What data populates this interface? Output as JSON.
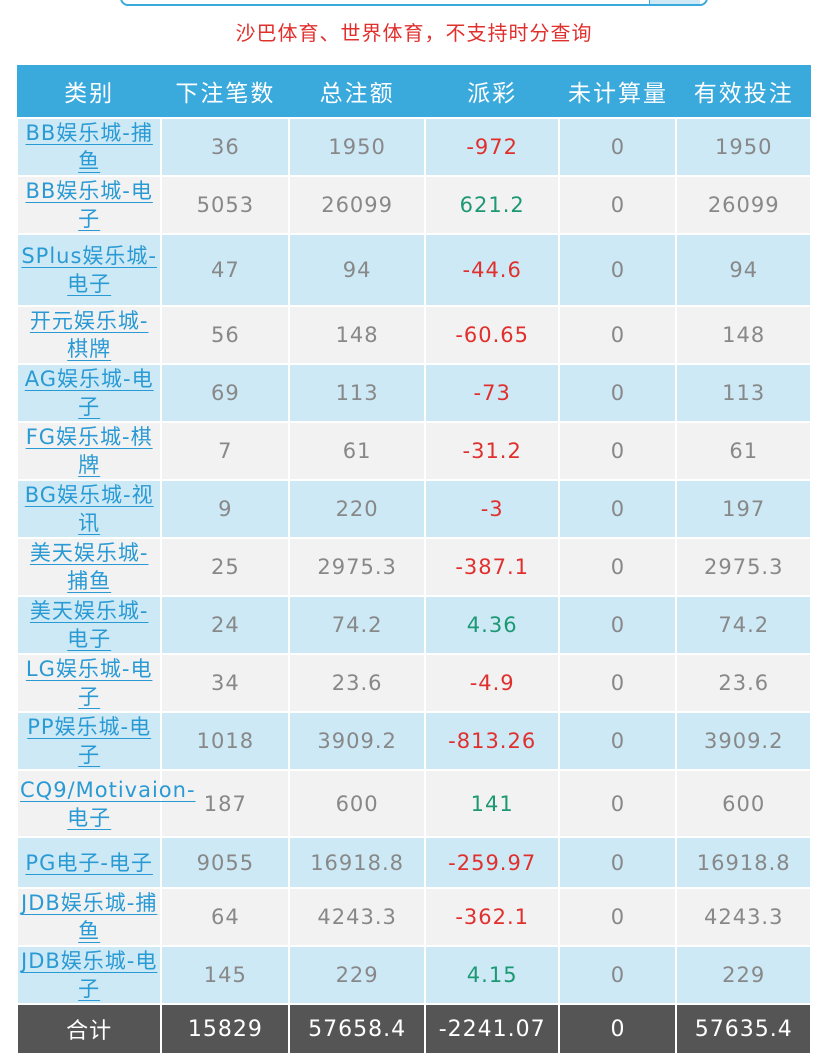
{
  "notice": "沙巴体育、世界体育，不支持时分查询",
  "colors": {
    "header_bg": "#3aa9dc",
    "row_odd": "#cde9f6",
    "row_even": "#f2f2f2",
    "negative": "#e0302e",
    "positive": "#1c9873",
    "footer_bg": "#555555",
    "link": "#2a9ad4"
  },
  "table": {
    "headers": [
      "类别",
      "下注笔数",
      "总注额",
      "派彩",
      "未计算量",
      "有效投注"
    ],
    "rows": [
      {
        "name": "BB娱乐城-捕鱼",
        "bets": "36",
        "total": "1950",
        "payout": "-972",
        "sign": "neg",
        "pending": "0",
        "valid": "1950",
        "h": 50
      },
      {
        "name": "BB娱乐城-电子",
        "bets": "5053",
        "total": "26099",
        "payout": "621.2",
        "sign": "pos",
        "pending": "0",
        "valid": "26099",
        "h": 51
      },
      {
        "name": "SPlus娱乐城-电子",
        "bets": "47",
        "total": "94",
        "payout": "-44.6",
        "sign": "neg",
        "pending": "0",
        "valid": "94",
        "h": 72
      },
      {
        "name": "开元娱乐城-棋牌",
        "bets": "56",
        "total": "148",
        "payout": "-60.65",
        "sign": "neg",
        "pending": "0",
        "valid": "148",
        "h": 51
      },
      {
        "name": "AG娱乐城-电子",
        "bets": "69",
        "total": "113",
        "payout": "-73",
        "sign": "neg",
        "pending": "0",
        "valid": "113",
        "h": 51
      },
      {
        "name": "FG娱乐城-棋牌",
        "bets": "7",
        "total": "61",
        "payout": "-31.2",
        "sign": "neg",
        "pending": "0",
        "valid": "61",
        "h": 51
      },
      {
        "name": "BG娱乐城-视讯",
        "bets": "9",
        "total": "220",
        "payout": "-3",
        "sign": "neg",
        "pending": "0",
        "valid": "197",
        "h": 51
      },
      {
        "name": "美天娱乐城-捕鱼",
        "bets": "25",
        "total": "2975.3",
        "payout": "-387.1",
        "sign": "neg",
        "pending": "0",
        "valid": "2975.3",
        "h": 51
      },
      {
        "name": "美天娱乐城-电子",
        "bets": "24",
        "total": "74.2",
        "payout": "4.36",
        "sign": "pos",
        "pending": "0",
        "valid": "74.2",
        "h": 51
      },
      {
        "name": "LG娱乐城-电子",
        "bets": "34",
        "total": "23.6",
        "payout": "-4.9",
        "sign": "neg",
        "pending": "0",
        "valid": "23.6",
        "h": 51
      },
      {
        "name": "PP娱乐城-电子",
        "bets": "1018",
        "total": "3909.2",
        "payout": "-813.26",
        "sign": "neg",
        "pending": "0",
        "valid": "3909.2",
        "h": 51
      },
      {
        "name": "CQ9/Motivaion-电子",
        "bets": "187",
        "total": "600",
        "payout": "141",
        "sign": "pos",
        "pending": "0",
        "valid": "600",
        "h": 67
      },
      {
        "name": "PG电子-电子",
        "bets": "9055",
        "total": "16918.8",
        "payout": "-259.97",
        "sign": "neg",
        "pending": "0",
        "valid": "16918.8",
        "h": 51
      },
      {
        "name": "JDB娱乐城-捕鱼",
        "bets": "64",
        "total": "4243.3",
        "payout": "-362.1",
        "sign": "neg",
        "pending": "0",
        "valid": "4243.3",
        "h": 51
      },
      {
        "name": "JDB娱乐城-电子",
        "bets": "145",
        "total": "229",
        "payout": "4.15",
        "sign": "pos",
        "pending": "0",
        "valid": "229",
        "h": 51
      }
    ],
    "footer": {
      "label": "合计",
      "bets": "15829",
      "total": "57658.4",
      "payout": "-2241.07",
      "pending": "0",
      "valid": "57635.4"
    }
  }
}
